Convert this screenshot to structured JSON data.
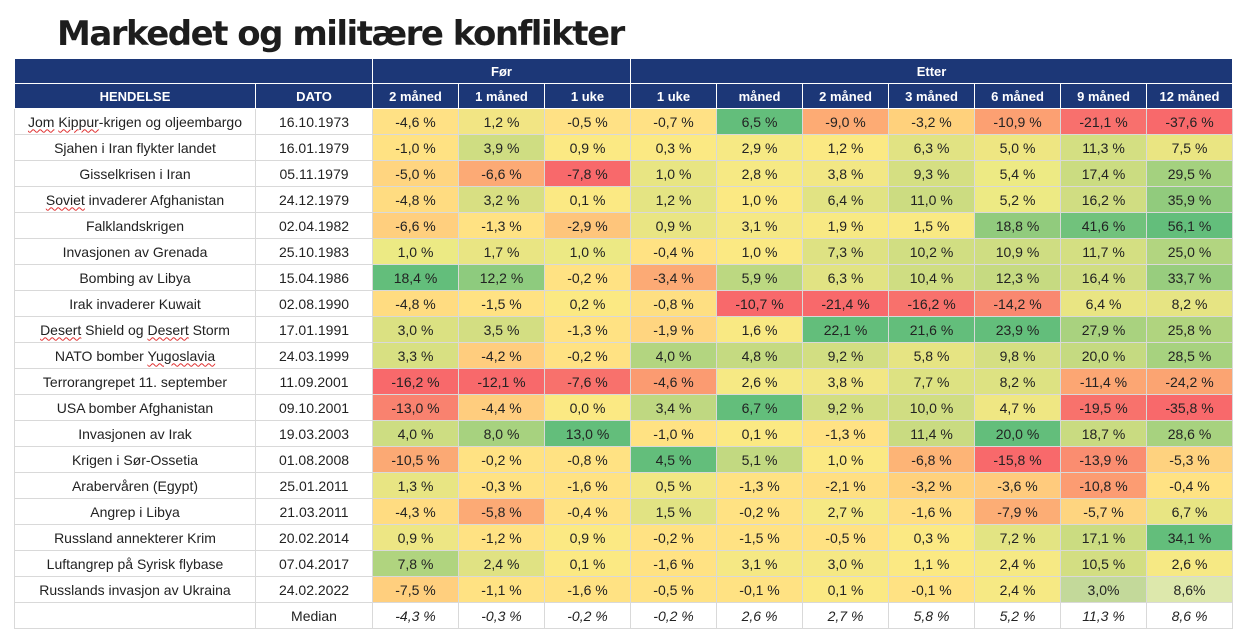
{
  "title": "Markedet og militære konflikter",
  "groups": {
    "blank": "",
    "before": "Før",
    "after": "Etter"
  },
  "headers": [
    "HENDELSE",
    "DATO",
    "2 måned",
    "1 måned",
    "1 uke",
    "1 uke",
    "måned",
    "2 måned",
    "3 måned",
    "6 måned",
    "9 måned",
    "12 måned"
  ],
  "rows": [
    {
      "event": "Jom Kippur-krigen og oljeembargo",
      "date": "16.10.1973",
      "values": [
        "-4,6 %",
        "1,2 %",
        "-0,5 %",
        "-0,7 %",
        "6,5 %",
        "-9,0 %",
        "-3,2 %",
        "-10,9 %",
        "-21,1 %",
        "-37,6 %"
      ],
      "colors": [
        "#ffe185",
        "#f2e584",
        "#ffe185",
        "#ffe185",
        "#63be7b",
        "#fdab74",
        "#ffd17c",
        "#fca072",
        "#f8706d",
        "#f8696b"
      ]
    },
    {
      "event": "Sjahen i Iran flykter landet",
      "date": "16.01.1979",
      "values": [
        "-1,0 %",
        "3,9 %",
        "0,9 %",
        "0,3 %",
        "2,9 %",
        "1,2 %",
        "6,3 %",
        "5,0 %",
        "11,3 %",
        "7,5 %"
      ],
      "colors": [
        "#ffe283",
        "#cfdd82",
        "#fbe983",
        "#fbe983",
        "#f6e984",
        "#fbe983",
        "#e1e383",
        "#eee682",
        "#d4df82",
        "#eae582"
      ]
    },
    {
      "event": "Gisselkrisen i Iran",
      "date": "05.11.1979",
      "values": [
        "-5,0 %",
        "-6,6 %",
        "-7,8 %",
        "1,0 %",
        "2,8 %",
        "3,8 %",
        "9,3 %",
        "5,4 %",
        "17,4 %",
        "29,5 %"
      ],
      "colors": [
        "#ffd580",
        "#fcaa75",
        "#f8696b",
        "#e8e583",
        "#f6e984",
        "#f2e784",
        "#d5df82",
        "#edea84",
        "#cbdc81",
        "#a4d17f"
      ]
    },
    {
      "event": "Soviet invaderer Afghanistan",
      "date": "24.12.1979",
      "values": [
        "-4,8 %",
        "3,2 %",
        "0,1 %",
        "1,2 %",
        "1,0 %",
        "6,4 %",
        "11,0 %",
        "5,2 %",
        "16,2 %",
        "35,9 %"
      ],
      "colors": [
        "#ffdc81",
        "#d8df82",
        "#fbe983",
        "#e4e483",
        "#fbe983",
        "#e1e383",
        "#ccdc81",
        "#edea84",
        "#d0dd82",
        "#91cb7d"
      ]
    },
    {
      "event": "Falklandskrigen",
      "date": "02.04.1982",
      "values": [
        "-6,6 %",
        "-1,3 %",
        "-2,9 %",
        "0,9 %",
        "3,1 %",
        "1,9 %",
        "1,5 %",
        "18,8 %",
        "41,6 %",
        "56,1 %"
      ],
      "colors": [
        "#ffcf7e",
        "#ffe283",
        "#fec57b",
        "#e9e583",
        "#f5e884",
        "#f8e983",
        "#f9e983",
        "#91cb7d",
        "#71c27c",
        "#63be7b"
      ]
    },
    {
      "event": "Invasjonen av Grenada",
      "date": "25.10.1983",
      "values": [
        "1,0 %",
        "1,7 %",
        "1,0 %",
        "-0,4 %",
        "1,0 %",
        "7,3 %",
        "10,2 %",
        "10,9 %",
        "11,7 %",
        "25,0 %"
      ],
      "colors": [
        "#ecea84",
        "#e9e583",
        "#ece984",
        "#ffe283",
        "#fbe983",
        "#dee283",
        "#d1de82",
        "#cfdd82",
        "#d4df82",
        "#b2d580"
      ]
    },
    {
      "event": "Bombing av Libya",
      "date": "15.04.1986",
      "values": [
        "18,4 %",
        "12,2 %",
        "-0,2 %",
        "-3,4 %",
        "5,9 %",
        "6,3 %",
        "10,4 %",
        "12,3 %",
        "16,4 %",
        "33,7 %"
      ],
      "colors": [
        "#63be7b",
        "#8ecb7e",
        "#ffe283",
        "#fcaa75",
        "#bcd881",
        "#e1e383",
        "#cfdd82",
        "#c6da81",
        "#d0dd82",
        "#98cd7e"
      ]
    },
    {
      "event": "Irak invaderer Kuwait",
      "date": "02.08.1990",
      "values": [
        "-4,8 %",
        "-1,5 %",
        "0,2 %",
        "-0,8 %",
        "-10,7 %",
        "-21,4 %",
        "-16,2 %",
        "-14,2 %",
        "6,4 %",
        "8,2 %"
      ],
      "colors": [
        "#ffdc81",
        "#ffe283",
        "#fbe983",
        "#fedf82",
        "#f8696b",
        "#f8696b",
        "#f8716c",
        "#f98870",
        "#e9e583",
        "#e6e483"
      ]
    },
    {
      "event": "Desert Shield og Desert Storm",
      "date": "17.01.1991",
      "values": [
        "3,0 %",
        "3,5 %",
        "-1,3 %",
        "-1,9 %",
        "1,6 %",
        "22,1 %",
        "21,6 %",
        "23,9 %",
        "27,9 %",
        "25,8 %"
      ],
      "colors": [
        "#dbe182",
        "#d3de82",
        "#ffe283",
        "#ffd580",
        "#f9e983",
        "#63be7b",
        "#63be7b",
        "#63be7b",
        "#a9d27f",
        "#b0d47f"
      ]
    },
    {
      "event": "NATO bomber Yugoslavia",
      "date": "24.03.1999",
      "values": [
        "3,3 %",
        "-4,2 %",
        "-0,2 %",
        "4,0 %",
        "4,8 %",
        "9,2 %",
        "5,8 %",
        "9,8 %",
        "20,0 %",
        "28,5 %"
      ],
      "colors": [
        "#d8e082",
        "#ffcd7e",
        "#ffe283",
        "#b3d580",
        "#c5da81",
        "#d2de82",
        "#e6e483",
        "#d5df82",
        "#c5da81",
        "#a7d27f"
      ]
    },
    {
      "event": "Terrorangrepet 11. september",
      "date": "11.09.2001",
      "values": [
        "-16,2 %",
        "-12,1 %",
        "-7,6 %",
        "-4,6 %",
        "2,6 %",
        "3,8 %",
        "7,7 %",
        "8,2 %",
        "-11,4 %",
        "-24,2 %"
      ],
      "colors": [
        "#f8696b",
        "#f8696b",
        "#f8716c",
        "#fb9b71",
        "#f6e984",
        "#f2e784",
        "#dde282",
        "#dde282",
        "#fca673",
        "#fba472"
      ]
    },
    {
      "event": "USA bomber Afghanistan",
      "date": "09.10.2001",
      "values": [
        "-13,0 %",
        "-4,4 %",
        "0,0 %",
        "3,4 %",
        "6,7 %",
        "9,2 %",
        "10,0 %",
        "4,7 %",
        "-19,5 %",
        "-35,8 %"
      ],
      "colors": [
        "#f9826f",
        "#ffcd7e",
        "#fbe983",
        "#bfd881",
        "#63be7b",
        "#d2de82",
        "#d0dd82",
        "#efe783",
        "#f8726c",
        "#f8696b"
      ]
    },
    {
      "event": "Invasjonen av Irak",
      "date": "19.03.2003",
      "values": [
        "4,0 %",
        "8,0 %",
        "13,0 %",
        "-1,0 %",
        "0,1 %",
        "-1,3 %",
        "11,4 %",
        "20,0 %",
        "18,7 %",
        "28,6 %"
      ],
      "colors": [
        "#cddd82",
        "#a7d27f",
        "#63be7b",
        "#ffe283",
        "#fbe983",
        "#ffe283",
        "#c9db81",
        "#63be7b",
        "#c9db81",
        "#a7d27f"
      ]
    },
    {
      "event": "Krigen i Sør-Ossetia",
      "date": "01.08.2008",
      "values": [
        "-10,5 %",
        "-0,2 %",
        "-0,8 %",
        "4,5 %",
        "5,1 %",
        "1,0 %",
        "-6,8 %",
        "-15,8 %",
        "-13,9 %",
        "-5,3 %"
      ],
      "colors": [
        "#fba974",
        "#ffe283",
        "#ffe283",
        "#63be7b",
        "#c2d981",
        "#fbe983",
        "#fdb476",
        "#f8696b",
        "#fa8d70",
        "#fed27f"
      ]
    },
    {
      "event": "Arabervåren (Egypt)",
      "date": "25.01.2011",
      "values": [
        "1,3 %",
        "-0,3 %",
        "-1,6 %",
        "0,5 %",
        "-1,3 %",
        "-2,1 %",
        "-3,2 %",
        "-3,6 %",
        "-10,8 %",
        "-0,4 %"
      ],
      "colors": [
        "#e8e583",
        "#ffe283",
        "#ffe283",
        "#f2e784",
        "#ffe283",
        "#ffdf82",
        "#ffd17c",
        "#ffcb7d",
        "#fc9c72",
        "#ffe283"
      ]
    },
    {
      "event": "Angrep i Libya",
      "date": "21.03.2011",
      "values": [
        "-4,3 %",
        "-5,8 %",
        "-0,4 %",
        "1,5 %",
        "-0,2 %",
        "2,7 %",
        "-1,6 %",
        "-7,9 %",
        "-5,7 %",
        "6,7 %"
      ],
      "colors": [
        "#ffdc81",
        "#fcaa75",
        "#ffe283",
        "#e1e383",
        "#ffe283",
        "#f6e984",
        "#ffde82",
        "#fcad75",
        "#fed580",
        "#e8e583"
      ]
    },
    {
      "event": "Russland annekterer Krim",
      "date": "20.02.2014",
      "values": [
        "0,9 %",
        "-1,2 %",
        "0,9 %",
        "-0,2 %",
        "-1,5 %",
        "-0,5 %",
        "0,3 %",
        "7,2 %",
        "17,1 %",
        "34,1 %"
      ],
      "colors": [
        "#ede684",
        "#ffe283",
        "#fbe983",
        "#ffe283",
        "#ffe283",
        "#ffe283",
        "#fbe983",
        "#e3e483",
        "#cbdc81",
        "#63be7b"
      ]
    },
    {
      "event": "Luftangrep på Syrisk flybase",
      "date": "07.04.2017",
      "values": [
        "7,8 %",
        "2,4 %",
        "0,1 %",
        "-1,6 %",
        "3,1 %",
        "3,0 %",
        "1,1 %",
        "2,4 %",
        "10,5 %",
        "2,6 %"
      ],
      "colors": [
        "#b0d47f",
        "#e0e283",
        "#fbe983",
        "#ffe283",
        "#f5e884",
        "#f5e884",
        "#fbe983",
        "#f6e984",
        "#d3de82",
        "#f6e984"
      ]
    },
    {
      "event": "Russlands invasjon av Ukraina",
      "date": "24.02.2022",
      "values": [
        "-7,5 %",
        "-1,1 %",
        "-1,6 %",
        "-0,5 %",
        "-0,1 %",
        "0,1 %",
        "-0,1 %",
        "2,4 %",
        "3,0%",
        "8,6%"
      ],
      "colors": [
        "#ffcf7e",
        "#ffe283",
        "#ffe283",
        "#ffe283",
        "#ffe283",
        "#fbe983",
        "#ffe283",
        "#f6e984",
        "#c3d99a",
        "#dde8ac"
      ]
    }
  ],
  "median": {
    "label": "Median",
    "values": [
      "-4,3 %",
      "-0,3 %",
      "-0,2 %",
      "-0,2 %",
      "2,6 %",
      "2,7 %",
      "5,8 %",
      "5,2 %",
      "11,3 %",
      "8,6 %"
    ]
  },
  "underlined_words": [
    "Jom",
    "Kippur",
    "Soviet",
    "Desert",
    "Yugoslavia"
  ]
}
